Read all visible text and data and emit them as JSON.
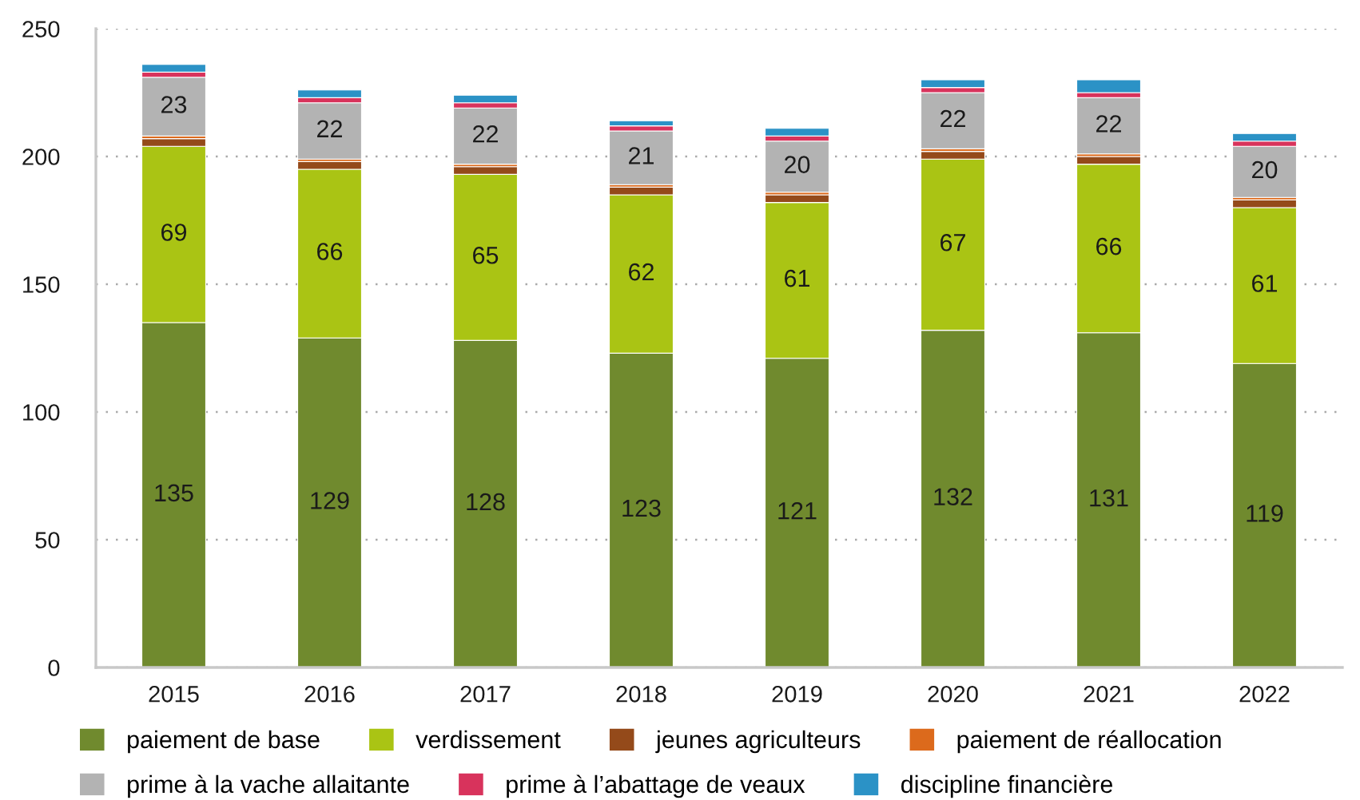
{
  "chart_data": {
    "type": "bar",
    "stacked": true,
    "categories": [
      "2015",
      "2016",
      "2017",
      "2018",
      "2019",
      "2020",
      "2021",
      "2022"
    ],
    "series": [
      {
        "name": "paiement de base",
        "color": "#708a2e",
        "values": [
          135,
          129,
          128,
          123,
          121,
          132,
          131,
          119
        ],
        "value_labels": [
          "135",
          "129",
          "128",
          "123",
          "121",
          "132",
          "131",
          "119"
        ]
      },
      {
        "name": "verdissement",
        "color": "#aac414",
        "values": [
          69,
          66,
          65,
          62,
          61,
          67,
          66,
          61
        ],
        "value_labels": [
          "69",
          "66",
          "65",
          "62",
          "61",
          "67",
          "66",
          "61"
        ]
      },
      {
        "name": "jeunes agriculteurs",
        "color": "#944a1a",
        "values": [
          3,
          3,
          3,
          3,
          3,
          3,
          3,
          3
        ]
      },
      {
        "name": "paiement de réallocation",
        "color": "#dc6a1c",
        "values": [
          1,
          1,
          1,
          1,
          1,
          1,
          1,
          1
        ]
      },
      {
        "name": "prime à la vache allaitante",
        "color": "#b3b3b3",
        "values": [
          23,
          22,
          22,
          21,
          20,
          22,
          22,
          20
        ],
        "value_labels": [
          "23",
          "22",
          "22",
          "21",
          "20",
          "22",
          "22",
          "20"
        ]
      },
      {
        "name": "prime à l’abattage de veaux",
        "color": "#d8335c",
        "values": [
          2,
          2,
          2,
          2,
          2,
          2,
          2,
          2
        ]
      },
      {
        "name": "discipline financière",
        "color": "#2b92c6",
        "values": [
          3,
          3,
          3,
          2,
          3,
          3,
          5,
          3
        ]
      }
    ],
    "ylim": [
      0,
      250
    ],
    "yticks": [
      0,
      50,
      100,
      150,
      200,
      250
    ],
    "grid": "y",
    "legend": "bottom"
  }
}
